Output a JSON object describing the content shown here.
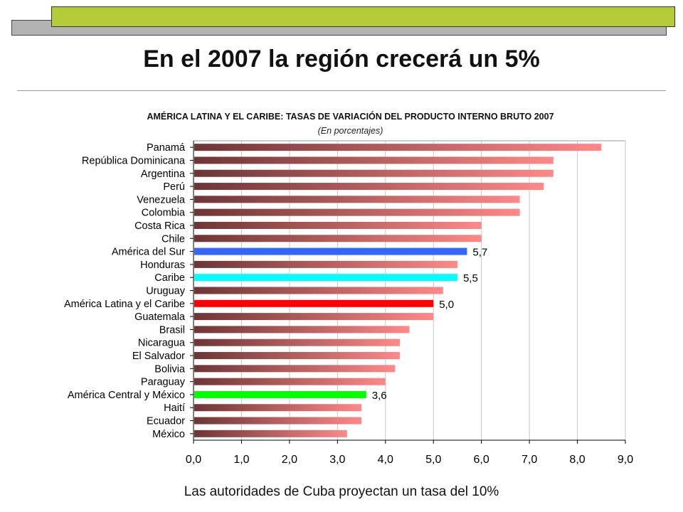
{
  "page": {
    "title": "En el 2007 la región crecerá un 5%",
    "footer": "Las autoridades de Cuba proyectan un tasa del 10%"
  },
  "colors": {
    "bar_gradient_start": "#6e3535",
    "bar_gradient_end": "#ff8888",
    "america_del_sur": "#3366ff",
    "caribe": "#00ffff",
    "america_latina_y_el_caribe": "#ff0000",
    "america_central_y_mexico": "#00ff00"
  },
  "chart_data": {
    "type": "bar",
    "orientation": "horizontal",
    "title": "AMÉRICA LATINA Y EL CARIBE: TASAS DE VARIACIÓN DEL PRODUCTO INTERNO BRUTO 2007",
    "subtitle": "(En porcentajes)",
    "xlabel": "",
    "ylabel": "",
    "xlim": [
      0,
      9
    ],
    "x_ticks": [
      "0,0",
      "1,0",
      "2,0",
      "3,0",
      "4,0",
      "5,0",
      "6,0",
      "7,0",
      "8,0",
      "9,0"
    ],
    "grid": "vertical",
    "categories": [
      "Panamá",
      "República Dominicana",
      "Argentina",
      "Perú",
      "Venezuela",
      "Colombia",
      "Costa Rica",
      "Chile",
      "América del Sur",
      "Honduras",
      "Caribe",
      "Uruguay",
      "América Latina y el Caribe",
      "Guatemala",
      "Brasil",
      "Nicaragua",
      "El Salvador",
      "Bolivia",
      "Paraguay",
      "América Central y México",
      "Haití",
      "Ecuador",
      "México"
    ],
    "values": [
      8.5,
      7.5,
      7.5,
      7.3,
      6.8,
      6.8,
      6.0,
      6.0,
      5.7,
      5.5,
      5.5,
      5.2,
      5.0,
      5.0,
      4.5,
      4.3,
      4.3,
      4.2,
      4.0,
      3.6,
      3.5,
      3.5,
      3.2
    ],
    "highlights": [
      {
        "category": "América del Sur",
        "color": "#3366ff",
        "label": "5,7"
      },
      {
        "category": "Caribe",
        "color": "#00ffff",
        "label": "5,5"
      },
      {
        "category": "América Latina y el Caribe",
        "color": "#ff0000",
        "label": "5,0"
      },
      {
        "category": "América Central y México",
        "color": "#00ff00",
        "label": "3,6"
      }
    ]
  }
}
